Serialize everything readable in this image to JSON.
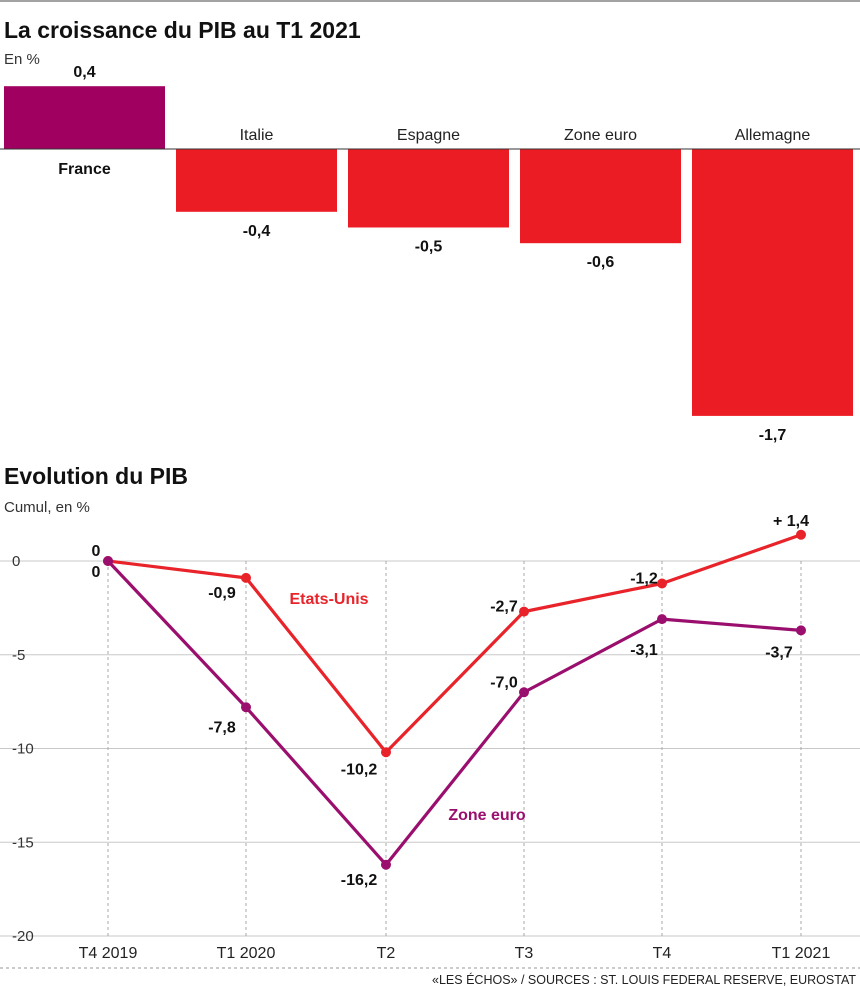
{
  "colors": {
    "france_bar": "#A0005F",
    "other_bars": "#EC1C24",
    "us_line": "#E8232A",
    "euro_line": "#9A0F6E",
    "grid": "#BBBBBB",
    "text": "#111111"
  },
  "chart_data": [
    {
      "type": "bar",
      "title": "La croissance du PIB au T1 2021",
      "unit_label": "En %",
      "categories": [
        "France",
        "Italie",
        "Espagne",
        "Zone euro",
        "Allemagne"
      ],
      "values": [
        0.4,
        -0.4,
        -0.5,
        -0.6,
        -1.7
      ],
      "value_labels": [
        "0,4",
        "-0,4",
        "-0,5",
        "-0,6",
        "-1,7"
      ],
      "highlight_category": "France",
      "ylim": [
        -1.7,
        0.4
      ]
    },
    {
      "type": "line",
      "title": "Evolution du PIB",
      "unit_label": "Cumul, en %",
      "categories": [
        "T4 2019",
        "T1 2020",
        "T2",
        "T3",
        "T4",
        "T1 2021"
      ],
      "ylim": [
        -20,
        0
      ],
      "yticks": [
        0,
        -5,
        -10,
        -15,
        -20
      ],
      "grid": true,
      "series": [
        {
          "name": "Etats-Unis",
          "color_key": "us_line",
          "values": [
            0,
            -0.9,
            -10.2,
            -2.7,
            -1.2,
            1.4
          ],
          "labels": [
            "0",
            "-0,9",
            "-10,2",
            "-2,7",
            "-1,2",
            "+ 1,4"
          ]
        },
        {
          "name": "Zone euro",
          "color_key": "euro_line",
          "values": [
            0,
            -7.8,
            -16.2,
            -7.0,
            -3.1,
            -3.7
          ],
          "labels": [
            "0",
            "-7,8",
            "-16,2",
            "-7,0",
            "-3,1",
            "-3,7"
          ]
        }
      ]
    }
  ],
  "source": "«LES ÉCHOS» / SOURCES : ST. LOUIS FEDERAL RESERVE, EUROSTAT"
}
